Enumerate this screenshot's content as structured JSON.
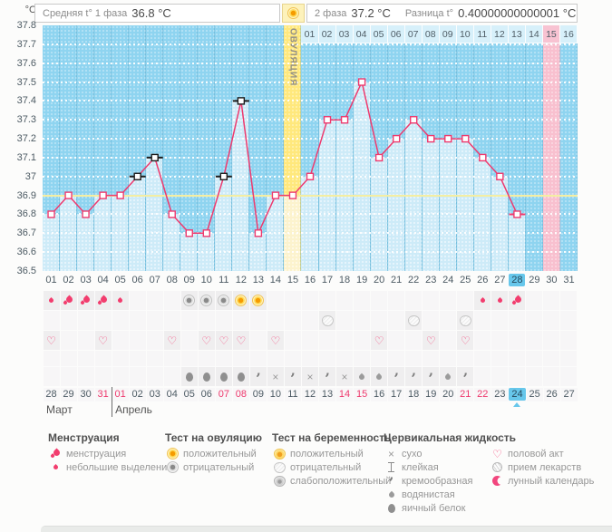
{
  "header": {
    "unit": "°C",
    "phase1_label": "Средняя t° 1 фаза",
    "phase1_value": "36.8 °C",
    "phase2_label": "2 фаза",
    "phase2_value": "37.2 °C",
    "diff_label": "Разница t°",
    "diff_value": "0.40000000000001 °C"
  },
  "chart_data": {
    "type": "line",
    "ylabel": "°C",
    "ylim": [
      36.5,
      37.8
    ],
    "ytick_labels": [
      "37.8",
      "37.7",
      "37.6",
      "37.5",
      "37.4",
      "37.3",
      "37.2",
      "37.1",
      "37",
      "36.9",
      "36.8",
      "36.7",
      "36.6",
      "36.5"
    ],
    "grid": "dotted-white",
    "coverline": 36.9,
    "day_labels": [
      "01",
      "02",
      "03",
      "04",
      "05",
      "06",
      "07",
      "08",
      "09",
      "10",
      "11",
      "12",
      "13",
      "14",
      "15",
      "16",
      "17",
      "18",
      "19",
      "20",
      "21",
      "22",
      "23",
      "24",
      "25",
      "26",
      "27",
      "28",
      "29",
      "30",
      "31"
    ],
    "temps": [
      36.8,
      36.9,
      36.8,
      36.9,
      36.9,
      37.0,
      37.1,
      36.8,
      36.7,
      36.7,
      37.0,
      37.4,
      36.7,
      36.9,
      36.9,
      37.0,
      37.3,
      37.3,
      37.5,
      37.1,
      37.2,
      37.3,
      37.2,
      37.2,
      37.2,
      37.1,
      37.0,
      36.8,
      null,
      null,
      null
    ],
    "flagged_black_days": [
      6,
      7,
      11,
      12
    ],
    "flagged_pink_days": [
      28
    ],
    "ovulation_day": 15,
    "ovulation_band_label": "ОВУЛЯЦИЯ",
    "highlighted_pink_day": 30,
    "selected_day": 28,
    "dpo_row": {
      "start_day": 16,
      "labels": [
        "01",
        "02",
        "03",
        "04",
        "05",
        "06",
        "07",
        "08",
        "09",
        "10",
        "11",
        "12",
        "13",
        "14",
        "15",
        "16"
      ],
      "highlighted_label": "15"
    }
  },
  "tracking_rows": {
    "bleeding": [
      {
        "day": 1,
        "type": "spotting"
      },
      {
        "day": 2,
        "type": "menses"
      },
      {
        "day": 3,
        "type": "menses"
      },
      {
        "day": 4,
        "type": "menses"
      },
      {
        "day": 5,
        "type": "spotting"
      },
      {
        "day": 26,
        "type": "spotting"
      },
      {
        "day": 27,
        "type": "spotting"
      },
      {
        "day": 28,
        "type": "menses"
      }
    ],
    "ovulation_tests": [
      {
        "day": 9,
        "result": "negative"
      },
      {
        "day": 10,
        "result": "negative"
      },
      {
        "day": 11,
        "result": "negative"
      },
      {
        "day": 12,
        "result": "positive"
      },
      {
        "day": 13,
        "result": "positive"
      }
    ],
    "pregnancy_tests": [
      {
        "day": 17,
        "result": "negative"
      },
      {
        "day": 22,
        "result": "negative"
      },
      {
        "day": 25,
        "result": "negative"
      }
    ],
    "intercourse_days": [
      1,
      4,
      8,
      10,
      11,
      12,
      14,
      20,
      23,
      25
    ],
    "cervical_fluid": [
      {
        "day": 9,
        "type": "eggwhite"
      },
      {
        "day": 10,
        "type": "eggwhite"
      },
      {
        "day": 11,
        "type": "eggwhite"
      },
      {
        "day": 12,
        "type": "eggwhite"
      },
      {
        "day": 13,
        "type": "creamy"
      },
      {
        "day": 14,
        "type": "dry"
      },
      {
        "day": 15,
        "type": "creamy"
      },
      {
        "day": 16,
        "type": "dry"
      },
      {
        "day": 17,
        "type": "creamy"
      },
      {
        "day": 18,
        "type": "dry"
      },
      {
        "day": 19,
        "type": "watery"
      },
      {
        "day": 20,
        "type": "watery"
      },
      {
        "day": 21,
        "type": "creamy"
      },
      {
        "day": 22,
        "type": "creamy"
      },
      {
        "day": 23,
        "type": "creamy"
      },
      {
        "day": 24,
        "type": "watery"
      },
      {
        "day": 25,
        "type": "creamy"
      }
    ]
  },
  "calendar": {
    "date_labels": [
      "28",
      "29",
      "30",
      "31",
      "01",
      "02",
      "03",
      "04",
      "05",
      "06",
      "07",
      "08",
      "09",
      "10",
      "11",
      "12",
      "13",
      "14",
      "15",
      "16",
      "17",
      "18",
      "19",
      "20",
      "21",
      "22",
      "23",
      "24",
      "25",
      "26",
      "27"
    ],
    "weekend_indices": [
      3,
      4,
      10,
      11,
      17,
      18,
      24,
      25
    ],
    "selected_index": 27,
    "month_boundary_index": 4,
    "months": [
      {
        "label": "Март",
        "start_index": 0
      },
      {
        "label": "Апрель",
        "start_index": 4
      }
    ]
  },
  "legend": {
    "groups": [
      {
        "header": "Менструация",
        "items": [
          {
            "icon": "menses",
            "label": "менструация"
          },
          {
            "icon": "spotting",
            "label": "небольшие выделения"
          }
        ]
      },
      {
        "header": "Тест на овуляцию",
        "items": [
          {
            "icon": "ovu-positive",
            "label": "положительный"
          },
          {
            "icon": "ovu-negative",
            "label": "отрицательный"
          }
        ]
      },
      {
        "header": "Тест на беременность",
        "items": [
          {
            "icon": "preg-positive",
            "label": "положительный"
          },
          {
            "icon": "preg-negative",
            "label": "отрицательный"
          },
          {
            "icon": "preg-weak",
            "label": "слабоположительный"
          }
        ]
      },
      {
        "header": "Цервикальная жидкость",
        "items": [
          {
            "icon": "dry",
            "label": "сухо"
          },
          {
            "icon": "sticky",
            "label": "клейкая"
          },
          {
            "icon": "creamy",
            "label": "кремообразная"
          },
          {
            "icon": "watery",
            "label": "водянистая"
          },
          {
            "icon": "eggwhite",
            "label": "яичный белок"
          }
        ]
      },
      {
        "header": "",
        "items": [
          {
            "icon": "heart",
            "label": "половой акт"
          },
          {
            "icon": "meds",
            "label": "прием лекарств"
          },
          {
            "icon": "moon",
            "label": "лунный календарь"
          }
        ]
      }
    ]
  },
  "colors": {
    "chart_blue": "#8ed4f0",
    "bar_light_blue": "#cdebf8",
    "ovulation_yellow": "#ffe87c",
    "ovulation_light": "#fcf3cd",
    "pink_column": "#f8c0cf",
    "coverline_yellow": "#f4eea2",
    "curve_pink": "#ee3a6e",
    "flag_black": "#1c1c1c",
    "weekend_red": "#ee3a6e",
    "selected_blue": "#67c7eb"
  }
}
